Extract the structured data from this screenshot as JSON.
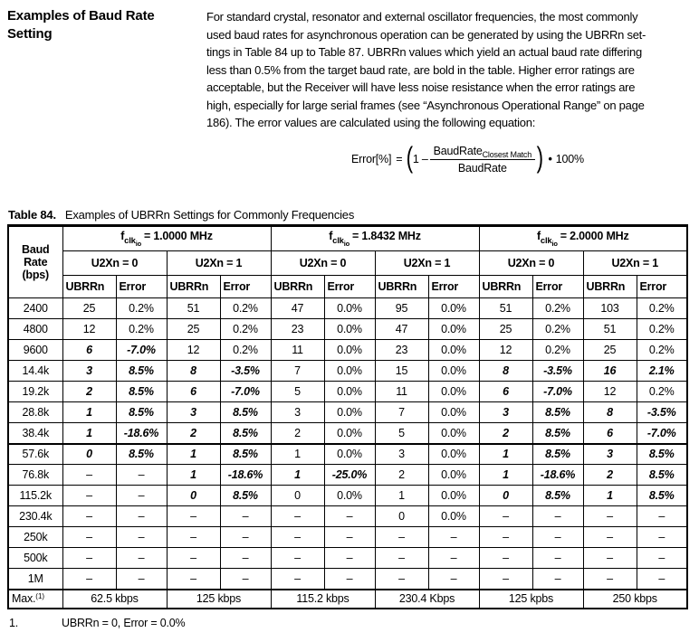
{
  "page": {
    "heading_lines": [
      "Examples of Baud Rate",
      "Setting"
    ],
    "intro_lines": [
      "For standard crystal, resonator and external oscillator frequencies, the most commonly",
      "used baud rates for asynchronous operation can be generated by using the UBRRn set-",
      "tings in Table 84 up to Table 87. UBRRn values which yield an actual baud rate differing",
      "less than 0.5% from the target baud rate, are bold in the table. Higher error ratings are",
      "acceptable, but the Receiver will have less noise resistance when the error ratings are",
      "high, especially for large serial frames (see “Asynchronous Operational Range” on page",
      "186). The error values are calculated using the following equation:"
    ]
  },
  "equation": {
    "lhs": "Error[%]",
    "eq": "=",
    "one_minus": "1 –",
    "num_base": "BaudRate",
    "num_sub": "Closest Match",
    "den": "BaudRate",
    "times": "•",
    "result": "100%"
  },
  "table": {
    "caption_label": "Table 84.",
    "caption_text": "Examples of UBRRn Settings for Commonly Frequencies",
    "baud_header_lines": [
      "Baud",
      "Rate",
      "(bps)"
    ],
    "freq_headers": [
      {
        "base": "f",
        "sub": "clk",
        "subsub": "io",
        "rest": "= 1.0000 MHz"
      },
      {
        "base": "f",
        "sub": "clk",
        "subsub": "io",
        "rest": "= 1.8432 MHz"
      },
      {
        "base": "f",
        "sub": "clk",
        "subsub": "io",
        "rest": "= 2.0000 MHz"
      }
    ],
    "u2x_headers": [
      "U2Xn = 0",
      "U2Xn = 1",
      "U2Xn = 0",
      "U2Xn = 1",
      "U2Xn = 0",
      "U2Xn = 1"
    ],
    "sub_headers": [
      "UBRRn",
      "Error",
      "UBRRn",
      "Error",
      "UBRRn",
      "Error",
      "UBRRn",
      "Error",
      "UBRRn",
      "Error",
      "UBRRn",
      "Error"
    ],
    "rows": [
      {
        "baud": "2400",
        "cells": [
          [
            "25",
            0
          ],
          [
            "0.2%",
            0
          ],
          [
            "51",
            0
          ],
          [
            "0.2%",
            0
          ],
          [
            "47",
            0
          ],
          [
            "0.0%",
            0
          ],
          [
            "95",
            0
          ],
          [
            "0.0%",
            0
          ],
          [
            "51",
            0
          ],
          [
            "0.2%",
            0
          ],
          [
            "103",
            0
          ],
          [
            "0.2%",
            0
          ]
        ]
      },
      {
        "baud": "4800",
        "cells": [
          [
            "12",
            0
          ],
          [
            "0.2%",
            0
          ],
          [
            "25",
            0
          ],
          [
            "0.2%",
            0
          ],
          [
            "23",
            0
          ],
          [
            "0.0%",
            0
          ],
          [
            "47",
            0
          ],
          [
            "0.0%",
            0
          ],
          [
            "25",
            0
          ],
          [
            "0.2%",
            0
          ],
          [
            "51",
            0
          ],
          [
            "0.2%",
            0
          ]
        ]
      },
      {
        "baud": "9600",
        "cells": [
          [
            "6",
            1
          ],
          [
            "-7.0%",
            1
          ],
          [
            "12",
            0
          ],
          [
            "0.2%",
            0
          ],
          [
            "11",
            0
          ],
          [
            "0.0%",
            0
          ],
          [
            "23",
            0
          ],
          [
            "0.0%",
            0
          ],
          [
            "12",
            0
          ],
          [
            "0.2%",
            0
          ],
          [
            "25",
            0
          ],
          [
            "0.2%",
            0
          ]
        ]
      },
      {
        "baud": "14.4k",
        "cells": [
          [
            "3",
            1
          ],
          [
            "8.5%",
            1
          ],
          [
            "8",
            1
          ],
          [
            "-3.5%",
            1
          ],
          [
            "7",
            0
          ],
          [
            "0.0%",
            0
          ],
          [
            "15",
            0
          ],
          [
            "0.0%",
            0
          ],
          [
            "8",
            1
          ],
          [
            "-3.5%",
            1
          ],
          [
            "16",
            1
          ],
          [
            "2.1%",
            1
          ]
        ]
      },
      {
        "baud": "19.2k",
        "cells": [
          [
            "2",
            1
          ],
          [
            "8.5%",
            1
          ],
          [
            "6",
            1
          ],
          [
            "-7.0%",
            1
          ],
          [
            "5",
            0
          ],
          [
            "0.0%",
            0
          ],
          [
            "11",
            0
          ],
          [
            "0.0%",
            0
          ],
          [
            "6",
            1
          ],
          [
            "-7.0%",
            1
          ],
          [
            "12",
            0
          ],
          [
            "0.2%",
            0
          ]
        ]
      },
      {
        "baud": "28.8k",
        "cells": [
          [
            "1",
            1
          ],
          [
            "8.5%",
            1
          ],
          [
            "3",
            1
          ],
          [
            "8.5%",
            1
          ],
          [
            "3",
            0
          ],
          [
            "0.0%",
            0
          ],
          [
            "7",
            0
          ],
          [
            "0.0%",
            0
          ],
          [
            "3",
            1
          ],
          [
            "8.5%",
            1
          ],
          [
            "8",
            1
          ],
          [
            "-3.5%",
            1
          ]
        ]
      },
      {
        "baud": "38.4k",
        "cells": [
          [
            "1",
            1
          ],
          [
            "-18.6%",
            1
          ],
          [
            "2",
            1
          ],
          [
            "8.5%",
            1
          ],
          [
            "2",
            0
          ],
          [
            "0.0%",
            0
          ],
          [
            "5",
            0
          ],
          [
            "0.0%",
            0
          ],
          [
            "2",
            1
          ],
          [
            "8.5%",
            1
          ],
          [
            "6",
            1
          ],
          [
            "-7.0%",
            1
          ]
        ]
      },
      {
        "baud": "57.6k",
        "thick": true,
        "cells": [
          [
            "0",
            1
          ],
          [
            "8.5%",
            1
          ],
          [
            "1",
            1
          ],
          [
            "8.5%",
            1
          ],
          [
            "1",
            0
          ],
          [
            "0.0%",
            0
          ],
          [
            "3",
            0
          ],
          [
            "0.0%",
            0
          ],
          [
            "1",
            1
          ],
          [
            "8.5%",
            1
          ],
          [
            "3",
            1
          ],
          [
            "8.5%",
            1
          ]
        ]
      },
      {
        "baud": "76.8k",
        "cells": [
          [
            "–",
            0
          ],
          [
            "–",
            0
          ],
          [
            "1",
            1
          ],
          [
            "-18.6%",
            1
          ],
          [
            "1",
            1
          ],
          [
            "-25.0%",
            1
          ],
          [
            "2",
            0
          ],
          [
            "0.0%",
            0
          ],
          [
            "1",
            1
          ],
          [
            "-18.6%",
            1
          ],
          [
            "2",
            1
          ],
          [
            "8.5%",
            1
          ]
        ]
      },
      {
        "baud": "115.2k",
        "cells": [
          [
            "–",
            0
          ],
          [
            "–",
            0
          ],
          [
            "0",
            1
          ],
          [
            "8.5%",
            1
          ],
          [
            "0",
            0
          ],
          [
            "0.0%",
            0
          ],
          [
            "1",
            0
          ],
          [
            "0.0%",
            0
          ],
          [
            "0",
            1
          ],
          [
            "8.5%",
            1
          ],
          [
            "1",
            1
          ],
          [
            "8.5%",
            1
          ]
        ]
      },
      {
        "baud": "230.4k",
        "cells": [
          [
            "–",
            0
          ],
          [
            "–",
            0
          ],
          [
            "–",
            0
          ],
          [
            "–",
            0
          ],
          [
            "–",
            0
          ],
          [
            "–",
            0
          ],
          [
            "0",
            0
          ],
          [
            "0.0%",
            0
          ],
          [
            "–",
            0
          ],
          [
            "–",
            0
          ],
          [
            "–",
            0
          ],
          [
            "–",
            0
          ]
        ]
      },
      {
        "baud": "250k",
        "cells": [
          [
            "–",
            0
          ],
          [
            "–",
            0
          ],
          [
            "–",
            0
          ],
          [
            "–",
            0
          ],
          [
            "–",
            0
          ],
          [
            "–",
            0
          ],
          [
            "–",
            0
          ],
          [
            "–",
            0
          ],
          [
            "–",
            0
          ],
          [
            "–",
            0
          ],
          [
            "–",
            0
          ],
          [
            "–",
            0
          ]
        ]
      },
      {
        "baud": "500k",
        "cells": [
          [
            "–",
            0
          ],
          [
            "–",
            0
          ],
          [
            "–",
            0
          ],
          [
            "–",
            0
          ],
          [
            "–",
            0
          ],
          [
            "–",
            0
          ],
          [
            "–",
            0
          ],
          [
            "–",
            0
          ],
          [
            "–",
            0
          ],
          [
            "–",
            0
          ],
          [
            "–",
            0
          ],
          [
            "–",
            0
          ]
        ]
      },
      {
        "baud": "1M",
        "cells": [
          [
            "–",
            0
          ],
          [
            "–",
            0
          ],
          [
            "–",
            0
          ],
          [
            "–",
            0
          ],
          [
            "–",
            0
          ],
          [
            "–",
            0
          ],
          [
            "–",
            0
          ],
          [
            "–",
            0
          ],
          [
            "–",
            0
          ],
          [
            "–",
            0
          ],
          [
            "–",
            0
          ],
          [
            "–",
            0
          ]
        ]
      }
    ],
    "max_row": {
      "label": "Max.",
      "footnote_ref": "(1)",
      "values": [
        "62.5 kbps",
        "125 kbps",
        "115.2 kbps",
        "230.4 Kbps",
        "125 kpbs",
        "250 kbps"
      ]
    },
    "footnote": {
      "number": "1.",
      "text": "UBRRn = 0, Error = 0.0%"
    }
  }
}
